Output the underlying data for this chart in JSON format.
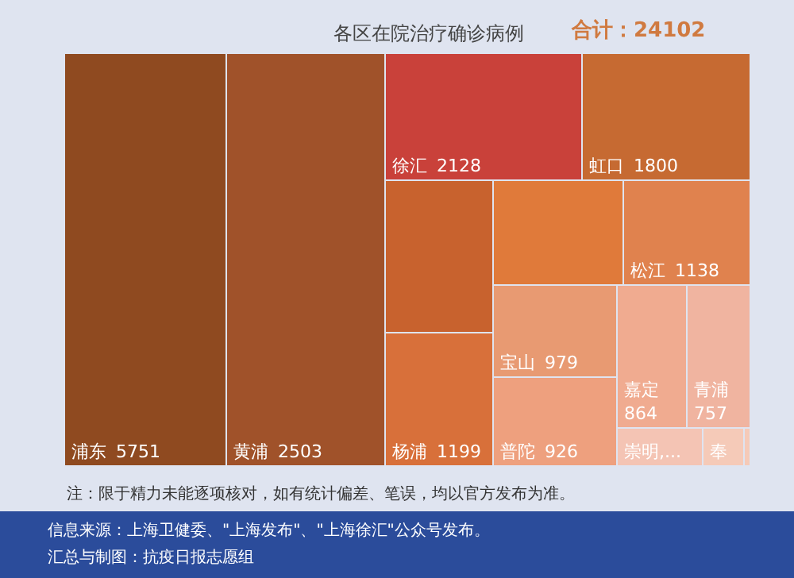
{
  "chart_data": {
    "type": "other",
    "title": "各区在院治疗确诊病例",
    "categories": [
      "浦东",
      "黄浦",
      "徐汇",
      "虹口",
      null,
      null,
      "松江",
      "杨浦",
      "宝山",
      "普陀",
      "嘉定",
      "青浦",
      "崇明,...",
      "奉",
      null
    ],
    "data_labels": true,
    "values": [
      5751,
      2503,
      2128,
      1800,
      null,
      null,
      1138,
      1199,
      979,
      926,
      864,
      757,
      null,
      null,
      null
    ],
    "colors": [
      "#8f4a20",
      "#a0522a",
      "#c9413a",
      "#c66a32",
      "#c8622e",
      "#e07a3a",
      "#e0824e",
      "#d8703a",
      "#e89a72",
      "#eea07e",
      "#f0ab90",
      "#f0b4a0",
      "#f4c4b4",
      "#f5cab8",
      "#f5cab8"
    ],
    "annotations": [
      "合计：24102",
      "注：限于精力未能逐项核对，如有统计偏差、笔误，均以官方发布为准。",
      "信息来源：上海卫健委、\"上海发布\"、\"上海徐汇\"公众号发布。",
      "汇总与制图：抗疫日报志愿组"
    ]
  }
}
